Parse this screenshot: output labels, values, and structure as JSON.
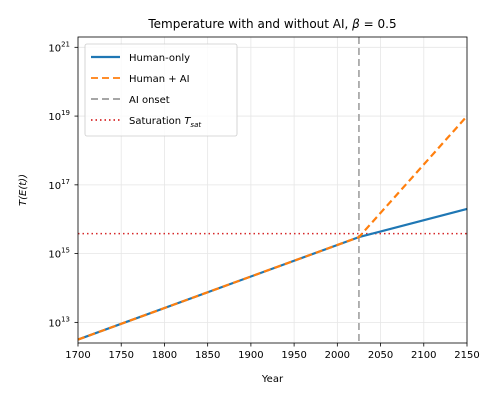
{
  "chart_data": {
    "type": "line",
    "title": "Temperature with and without AI, β = 0.5",
    "xlabel": "Year",
    "ylabel": "T(E(t))",
    "xlim": [
      1700,
      2150
    ],
    "ylim_log10": [
      12.4,
      21.3
    ],
    "yscale": "log",
    "grid": true,
    "legend_position": "top-left",
    "x_ticks": [
      {
        "value": 1700,
        "label": "1700"
      },
      {
        "value": 1750,
        "label": "1750"
      },
      {
        "value": 1800,
        "label": "1800"
      },
      {
        "value": 1850,
        "label": "1850"
      },
      {
        "value": 1900,
        "label": "1900"
      },
      {
        "value": 1950,
        "label": "1950"
      },
      {
        "value": 2000,
        "label": "2000"
      },
      {
        "value": 2050,
        "label": "2050"
      },
      {
        "value": 2100,
        "label": "2100"
      },
      {
        "value": 2150,
        "label": "2150"
      }
    ],
    "y_ticks": [
      {
        "exponent": 13,
        "base": "10",
        "exp": "13"
      },
      {
        "exponent": 15,
        "base": "10",
        "exp": "15"
      },
      {
        "exponent": 17,
        "base": "10",
        "exp": "17"
      },
      {
        "exponent": 19,
        "base": "10",
        "exp": "19"
      },
      {
        "exponent": 21,
        "base": "10",
        "exp": "21"
      }
    ],
    "series": [
      {
        "name": "Human-only",
        "color": "#1f77b4",
        "style": "solid",
        "x": [
          1700,
          2025,
          2150
        ],
        "log10_y": [
          12.5,
          15.48,
          16.3
        ]
      },
      {
        "name": "Human + AI",
        "color": "#ff7f0e",
        "style": "dashed",
        "x": [
          1700,
          2025,
          2150
        ],
        "log10_y": [
          12.5,
          15.48,
          19.0
        ]
      }
    ],
    "reference_lines": [
      {
        "name": "AI onset",
        "orientation": "vertical",
        "x": 2025,
        "color": "#999999",
        "style": "dashed"
      },
      {
        "name": "Saturation T_sat",
        "orientation": "horizontal",
        "log10_y": 15.58,
        "color": "#d62728",
        "style": "dotted"
      }
    ],
    "legend": [
      {
        "label": "Human-only",
        "color": "#1f77b4",
        "style": "solid"
      },
      {
        "label": "Human + AI",
        "color": "#ff7f0e",
        "style": "dashed"
      },
      {
        "label": "AI onset",
        "color": "#999999",
        "style": "dashed"
      },
      {
        "label": "Saturation ",
        "sub_label": "T",
        "subscript": "sat",
        "color": "#d62728",
        "style": "dotted"
      }
    ]
  }
}
